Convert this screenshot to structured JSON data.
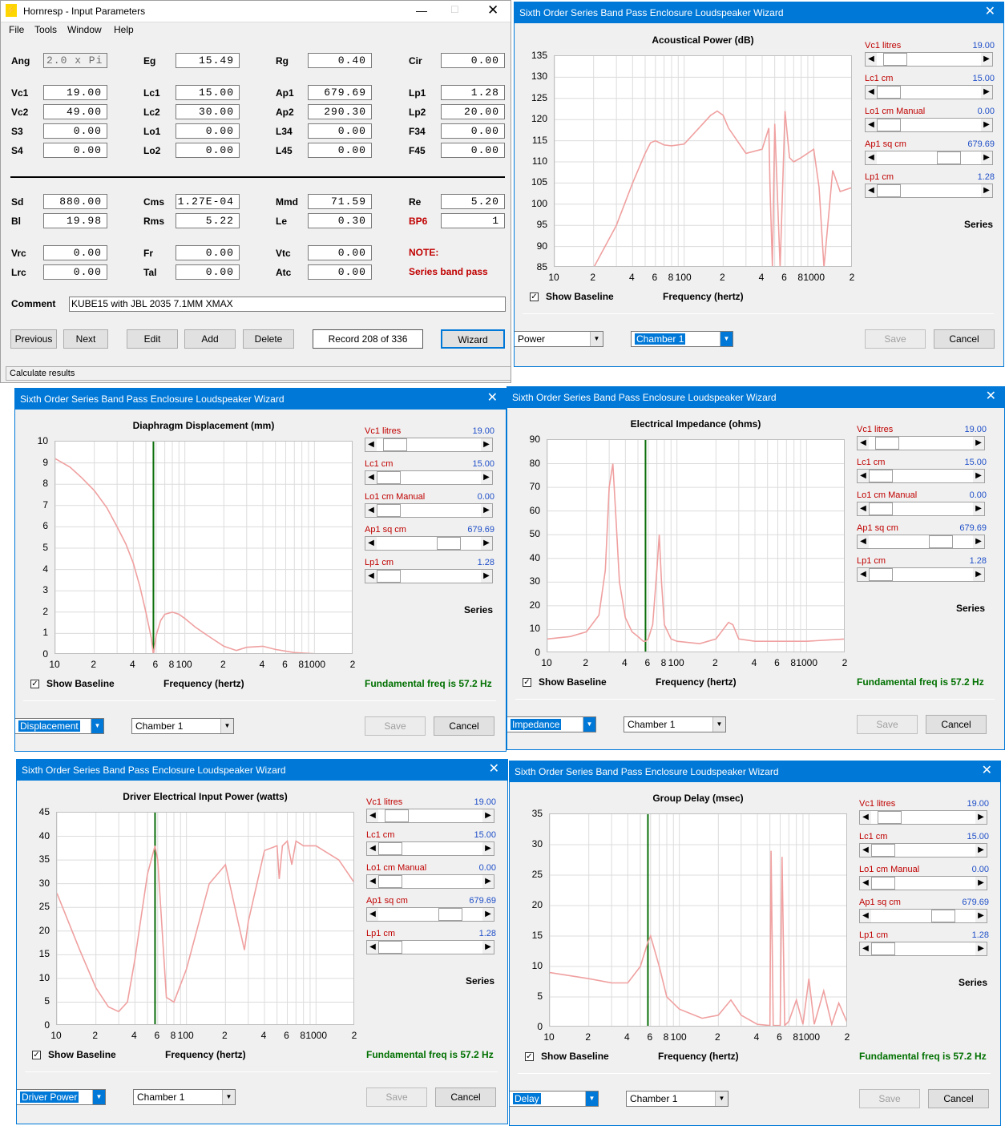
{
  "main": {
    "title": "Hornresp - Input Parameters",
    "menu": [
      "File",
      "Tools",
      "Window",
      "Help"
    ],
    "params": [
      [
        "Ang",
        "2.0 x Pi",
        "Eg",
        "15.49",
        "Rg",
        "0.40",
        "Cir",
        "0.00"
      ],
      [
        "Vc1",
        "19.00",
        "Lc1",
        "15.00",
        "Ap1",
        "679.69",
        "Lp1",
        "1.28"
      ],
      [
        "Vc2",
        "49.00",
        "Lc2",
        "30.00",
        "Ap2",
        "290.30",
        "Lp2",
        "20.00"
      ],
      [
        "S3",
        "0.00",
        "Lo1",
        "0.00",
        "L34",
        "0.00",
        "F34",
        "0.00"
      ],
      [
        "S4",
        "0.00",
        "Lo2",
        "0.00",
        "L45",
        "0.00",
        "F45",
        "0.00"
      ],
      [
        "Sd",
        "880.00",
        "Cms",
        "1.27E-04",
        "Mmd",
        "71.59",
        "Re",
        "5.20"
      ],
      [
        "Bl",
        "19.98",
        "Rms",
        "5.22",
        "Le",
        "0.30",
        "BP6",
        "1"
      ],
      [
        "Vrc",
        "0.00",
        "Fr",
        "0.00",
        "Vtc",
        "0.00"
      ],
      [
        "Lrc",
        "0.00",
        "Tal",
        "0.00",
        "Atc",
        "0.00"
      ]
    ],
    "note": "NOTE:",
    "note_text": "Series band pass",
    "comment_label": "Comment",
    "comment": "KUBE15 with JBL 2035  7.1MM XMAX",
    "buttons": {
      "previous": "Previous",
      "next": "Next",
      "edit": "Edit",
      "add": "Add",
      "delete": "Delete",
      "record": "Record 208 of 336",
      "wizard": "Wizard"
    },
    "status": "Calculate results"
  },
  "wizard_title": "Sixth Order Series Band Pass Enclosure Loudspeaker Wizard",
  "sliders": [
    {
      "label": "Vc1  litres",
      "value": "19.00",
      "pos": 0.08
    },
    {
      "label": "Lc1  cm",
      "value": "15.00",
      "pos": 0.0
    },
    {
      "label": "Lo1  cm  Manual",
      "value": "0.00",
      "pos": 0.0
    },
    {
      "label": "Ap1  sq cm",
      "value": "679.69",
      "pos": 0.75
    },
    {
      "label": "Lp1  cm",
      "value": "1.28",
      "pos": 0.0
    }
  ],
  "series_label": "Series",
  "show_baseline": "Show Baseline",
  "freq_label": "Frequency (hertz)",
  "fundamental": "Fundamental freq is 57.2 Hz",
  "chamber": "Chamber 1",
  "save": "Save",
  "cancel": "Cancel",
  "x_ticks": [
    "10",
    "2",
    "4",
    "6",
    "8",
    "100",
    "2",
    "4",
    "6",
    "8",
    "1000",
    "2"
  ],
  "chart_data": [
    {
      "type": "line",
      "title": "Acoustical Power (dB)",
      "selector": "Power",
      "xscale": "log",
      "xlim": [
        10,
        20000
      ],
      "ylim": [
        85,
        135
      ],
      "yticks": [
        "135",
        "130",
        "125",
        "120",
        "115",
        "110",
        "105",
        "100",
        "95",
        "90",
        "85"
      ],
      "x": [
        20,
        30,
        40,
        50,
        55,
        60,
        70,
        80,
        100,
        130,
        160,
        180,
        200,
        220,
        300,
        400,
        450,
        460,
        480,
        500,
        550,
        600,
        650,
        700,
        800,
        1000,
        1100,
        1200,
        1400,
        1600,
        2000
      ],
      "y": [
        85,
        95,
        105,
        112,
        114.5,
        115,
        114,
        113.8,
        114.2,
        118,
        121,
        122,
        121,
        118,
        112,
        113,
        118,
        104,
        85,
        119,
        85,
        122,
        111,
        110,
        111,
        113,
        104,
        85,
        108,
        103,
        104
      ]
    },
    {
      "type": "line",
      "title": "Diaphragm Displacement (mm)",
      "selector": "Displacement",
      "xscale": "log",
      "xlim": [
        10,
        20000
      ],
      "ylim": [
        0,
        10
      ],
      "yticks": [
        "10",
        "9",
        "8",
        "7",
        "6",
        "5",
        "4",
        "3",
        "2",
        "1",
        "0"
      ],
      "marker": 57.2,
      "x": [
        10,
        13,
        16,
        20,
        25,
        30,
        35,
        40,
        45,
        50,
        55,
        57.2,
        60,
        65,
        70,
        80,
        90,
        100,
        120,
        150,
        200,
        250,
        300,
        400,
        500,
        700,
        1000,
        1500,
        2000
      ],
      "y": [
        9.2,
        8.8,
        8.3,
        7.7,
        6.9,
        6.0,
        5.2,
        4.3,
        3.2,
        2.0,
        0.8,
        0.0,
        0.9,
        1.6,
        1.9,
        2.0,
        1.9,
        1.7,
        1.3,
        0.9,
        0.4,
        0.2,
        0.35,
        0.4,
        0.25,
        0.1,
        0.05,
        0.03,
        0.02
      ]
    },
    {
      "type": "line",
      "title": "Electrical Impedance (ohms)",
      "selector": "Impedance",
      "xscale": "log",
      "xlim": [
        10,
        20000
      ],
      "ylim": [
        0,
        90
      ],
      "yticks": [
        "90",
        "80",
        "70",
        "60",
        "50",
        "40",
        "30",
        "20",
        "10",
        "0"
      ],
      "marker": 57.2,
      "x": [
        10,
        15,
        20,
        25,
        28,
        30,
        32,
        34,
        36,
        40,
        45,
        50,
        55,
        57.2,
        60,
        65,
        70,
        73,
        76,
        80,
        90,
        100,
        150,
        200,
        250,
        270,
        300,
        400,
        600,
        1000,
        2000
      ],
      "y": [
        6,
        7,
        9,
        16,
        35,
        70,
        80,
        55,
        30,
        15,
        9,
        7,
        5,
        5,
        6,
        12,
        35,
        50,
        30,
        12,
        6,
        5,
        4,
        6,
        13,
        12,
        6,
        5,
        5,
        5,
        6
      ]
    },
    {
      "type": "line",
      "title": "Driver Electrical Input Power (watts)",
      "selector": "Driver Power",
      "xscale": "log",
      "xlim": [
        10,
        20000
      ],
      "ylim": [
        0,
        45
      ],
      "yticks": [
        "45",
        "40",
        "35",
        "30",
        "25",
        "20",
        "15",
        "10",
        "5",
        "0"
      ],
      "marker": 57.2,
      "x": [
        10,
        15,
        20,
        25,
        30,
        35,
        40,
        50,
        57.2,
        60,
        65,
        70,
        80,
        100,
        150,
        200,
        250,
        280,
        300,
        400,
        500,
        520,
        550,
        600,
        650,
        700,
        800,
        1000,
        1500,
        2000
      ],
      "y": [
        28,
        16,
        8,
        4,
        3,
        5,
        14,
        32,
        38,
        35,
        20,
        6,
        5,
        12,
        30,
        34,
        22,
        16,
        22,
        37,
        38,
        31,
        38,
        39,
        34,
        39,
        38,
        38,
        35,
        30
      ]
    },
    {
      "type": "line",
      "title": "Group Delay (msec)",
      "selector": "Delay",
      "xscale": "log",
      "xlim": [
        10,
        20000
      ],
      "ylim": [
        0,
        35
      ],
      "yticks": [
        "35",
        "30",
        "25",
        "20",
        "15",
        "10",
        "5",
        "0"
      ],
      "marker": 57.2,
      "x": [
        10,
        20,
        30,
        40,
        50,
        57.2,
        60,
        70,
        80,
        100,
        150,
        200,
        250,
        300,
        400,
        500,
        510,
        530,
        600,
        620,
        650,
        700,
        800,
        900,
        1000,
        1100,
        1300,
        1500,
        1700,
        2000
      ],
      "y": [
        9,
        8,
        7.3,
        7.3,
        10,
        14,
        15,
        10,
        5,
        3,
        1.5,
        2,
        4.5,
        2,
        0.5,
        0.3,
        29,
        0.3,
        0.3,
        28,
        0.3,
        1,
        4.5,
        0.5,
        8,
        0.5,
        6,
        0.5,
        4,
        0.5
      ]
    }
  ]
}
